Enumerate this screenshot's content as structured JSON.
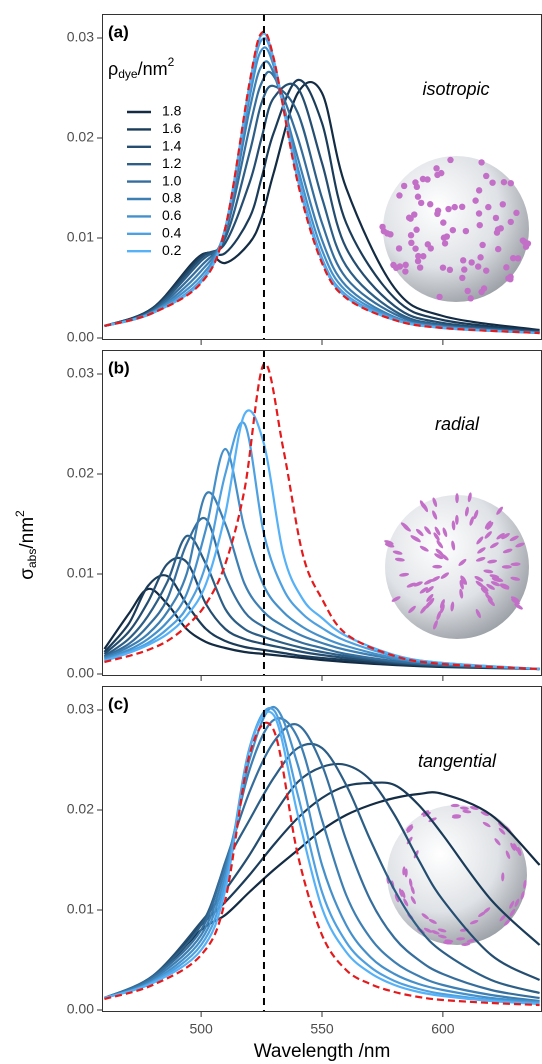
{
  "chart_data": [
    {
      "type": "line",
      "panel_label": "(a)",
      "annotation": "isotropic",
      "legend_title": [
        "ρ",
        "dye",
        "/nm",
        "2"
      ],
      "reference_line": 526,
      "xlim": [
        459,
        641
      ],
      "xticks": [
        500,
        550,
        600
      ],
      "ylim": [
        -0.0002,
        0.0324
      ],
      "yticks": [
        {
          "value": 0,
          "label": "0.00"
        },
        0.01,
        0.02,
        0.03
      ],
      "x": [
        460,
        480,
        500,
        510,
        520,
        525,
        530,
        540,
        550,
        560,
        580,
        600,
        640
      ],
      "series": [
        {
          "name": "1.8",
          "color": "#132b43",
          "values": [
            0.0012,
            0.003,
            0.0083,
            0.0075,
            0.0095,
            0.012,
            0.0165,
            0.0245,
            0.0245,
            0.015,
            0.005,
            0.0022,
            0.0008
          ]
        },
        {
          "name": "1.6",
          "color": "#1b3c59",
          "values": [
            0.0012,
            0.003,
            0.0082,
            0.0085,
            0.012,
            0.016,
            0.0205,
            0.0258,
            0.0215,
            0.0115,
            0.004,
            0.0018,
            0.0007
          ]
        },
        {
          "name": "1.4",
          "color": "#244d70",
          "values": [
            0.0012,
            0.0029,
            0.008,
            0.0095,
            0.0155,
            0.02,
            0.024,
            0.025,
            0.0175,
            0.009,
            0.0032,
            0.0015,
            0.0006
          ]
        },
        {
          "name": "1.2",
          "color": "#2c5e86",
          "values": [
            0.0012,
            0.0028,
            0.0077,
            0.01,
            0.0185,
            0.0235,
            0.0252,
            0.0225,
            0.014,
            0.0072,
            0.0027,
            0.0013,
            0.0006
          ]
        },
        {
          "name": "1.0",
          "color": "#356e9d",
          "values": [
            0.0012,
            0.0027,
            0.0072,
            0.0105,
            0.021,
            0.0255,
            0.0262,
            0.02,
            0.0115,
            0.006,
            0.0024,
            0.0012,
            0.0005
          ]
        },
        {
          "name": "0.8",
          "color": "#3d7fb3",
          "values": [
            0.0012,
            0.0026,
            0.0067,
            0.0108,
            0.0228,
            0.0272,
            0.0265,
            0.018,
            0.0098,
            0.0052,
            0.0021,
            0.0011,
            0.0005
          ]
        },
        {
          "name": "0.6",
          "color": "#4590ca",
          "values": [
            0.0012,
            0.0026,
            0.0062,
            0.011,
            0.024,
            0.0288,
            0.0272,
            0.017,
            0.0088,
            0.0047,
            0.002,
            0.0011,
            0.0005
          ]
        },
        {
          "name": "0.4",
          "color": "#4ea0e0",
          "values": [
            0.0012,
            0.0025,
            0.0058,
            0.011,
            0.0248,
            0.0298,
            0.0277,
            0.0162,
            0.008,
            0.0043,
            0.0019,
            0.001,
            0.0005
          ]
        },
        {
          "name": "0.2",
          "color": "#56b1f7",
          "values": [
            0.0012,
            0.0025,
            0.0056,
            0.011,
            0.0253,
            0.0303,
            0.0279,
            0.0158,
            0.0077,
            0.0041,
            0.0018,
            0.001,
            0.0005
          ]
        }
      ],
      "reference": {
        "color": "#e41a1c",
        "values": [
          0.0012,
          0.0025,
          0.0055,
          0.011,
          0.0255,
          0.0305,
          0.028,
          0.0155,
          0.0075,
          0.004,
          0.0018,
          0.001,
          0.0005
        ]
      }
    },
    {
      "type": "line",
      "panel_label": "(b)",
      "annotation": "radial",
      "y_label": [
        "σ",
        "abs",
        "/nm",
        "2"
      ],
      "reference_line": 526,
      "xlim": [
        459,
        641
      ],
      "xticks": [
        500,
        550,
        600
      ],
      "ylim": [
        -0.0002,
        0.0324
      ],
      "yticks": [
        {
          "value": 0,
          "label": "0.00"
        },
        0.01,
        0.02,
        0.03
      ],
      "x": [
        460,
        470,
        478,
        486,
        494,
        502,
        510,
        518,
        526,
        534,
        542,
        550,
        560,
        580,
        600,
        640
      ],
      "series": [
        {
          "color": "#132b43",
          "values": [
            0.0025,
            0.006,
            0.0085,
            0.007,
            0.0045,
            0.0032,
            0.0026,
            0.0022,
            0.002,
            0.0018,
            0.0016,
            0.0014,
            0.0012,
            0.0009,
            0.0007,
            0.0005
          ]
        },
        {
          "color": "#1b3c59",
          "values": [
            0.0022,
            0.005,
            0.0088,
            0.0098,
            0.007,
            0.0045,
            0.0033,
            0.0027,
            0.0024,
            0.0021,
            0.0018,
            0.0016,
            0.0014,
            0.001,
            0.0008,
            0.0005
          ]
        },
        {
          "color": "#244d70",
          "values": [
            0.002,
            0.0042,
            0.0072,
            0.011,
            0.0112,
            0.007,
            0.0045,
            0.0035,
            0.003,
            0.0026,
            0.0022,
            0.0019,
            0.0016,
            0.0011,
            0.0008,
            0.0005
          ]
        },
        {
          "color": "#2c5e86",
          "values": [
            0.0018,
            0.0035,
            0.0058,
            0.0092,
            0.0138,
            0.011,
            0.0065,
            0.0045,
            0.0037,
            0.0031,
            0.0026,
            0.0022,
            0.0018,
            0.0012,
            0.0009,
            0.0005
          ]
        },
        {
          "color": "#356e9d",
          "values": [
            0.0017,
            0.003,
            0.0048,
            0.0075,
            0.013,
            0.0155,
            0.0098,
            0.0062,
            0.0047,
            0.0038,
            0.0031,
            0.0026,
            0.002,
            0.0013,
            0.0009,
            0.0005
          ]
        },
        {
          "color": "#3d7fb3",
          "values": [
            0.0016,
            0.0027,
            0.004,
            0.0062,
            0.01,
            0.018,
            0.015,
            0.009,
            0.0062,
            0.0048,
            0.0038,
            0.0031,
            0.0024,
            0.0015,
            0.001,
            0.0005
          ]
        },
        {
          "color": "#4590ca",
          "values": [
            0.0015,
            0.0024,
            0.0035,
            0.0052,
            0.008,
            0.0145,
            0.0225,
            0.0145,
            0.0088,
            0.0062,
            0.0047,
            0.0037,
            0.0028,
            0.0016,
            0.001,
            0.0005
          ]
        },
        {
          "color": "#4ea0e0",
          "values": [
            0.0014,
            0.0022,
            0.0031,
            0.0045,
            0.0066,
            0.011,
            0.02,
            0.025,
            0.014,
            0.0085,
            0.006,
            0.0046,
            0.0033,
            0.0018,
            0.0011,
            0.0005
          ]
        },
        {
          "color": "#56b1f7",
          "values": [
            0.0013,
            0.0021,
            0.0029,
            0.004,
            0.0058,
            0.009,
            0.016,
            0.026,
            0.023,
            0.012,
            0.0075,
            0.0056,
            0.0038,
            0.0019,
            0.0011,
            0.0005
          ]
        }
      ],
      "reference": {
        "color": "#e41a1c",
        "values": [
          0.0012,
          0.0018,
          0.0024,
          0.0033,
          0.0048,
          0.007,
          0.011,
          0.0185,
          0.031,
          0.0225,
          0.012,
          0.0075,
          0.004,
          0.0018,
          0.001,
          0.0005
        ]
      }
    },
    {
      "type": "line",
      "panel_label": "(c)",
      "annotation": "tangential",
      "x_label": "Wavelength /nm",
      "reference_line": 526,
      "xlim": [
        459,
        641
      ],
      "xticks": [
        500,
        550,
        600
      ],
      "ylim": [
        -0.0002,
        0.0324
      ],
      "yticks": [
        {
          "value": 0,
          "label": "0.00"
        },
        0.01,
        0.02,
        0.03
      ],
      "x": [
        460,
        480,
        500,
        510,
        520,
        530,
        540,
        550,
        560,
        570,
        580,
        590,
        600,
        620,
        640
      ],
      "series": [
        {
          "color": "#132b43",
          "values": [
            0.0012,
            0.0032,
            0.008,
            0.0095,
            0.0118,
            0.014,
            0.016,
            0.018,
            0.0195,
            0.0205,
            0.0212,
            0.0216,
            0.0216,
            0.0195,
            0.0145
          ]
        },
        {
          "color": "#1b3c59",
          "values": [
            0.0012,
            0.0033,
            0.0085,
            0.0108,
            0.0135,
            0.0165,
            0.0192,
            0.0212,
            0.0224,
            0.0227,
            0.0225,
            0.0205,
            0.0175,
            0.011,
            0.0065
          ]
        },
        {
          "color": "#244d70",
          "values": [
            0.0012,
            0.0034,
            0.0088,
            0.012,
            0.0155,
            0.0195,
            0.0228,
            0.0243,
            0.0245,
            0.023,
            0.0195,
            0.015,
            0.011,
            0.0055,
            0.003
          ]
        },
        {
          "color": "#2c5e86",
          "values": [
            0.0012,
            0.0034,
            0.0085,
            0.0145,
            0.019,
            0.0232,
            0.0262,
            0.0262,
            0.0225,
            0.017,
            0.012,
            0.0082,
            0.0058,
            0.003,
            0.0017
          ]
        },
        {
          "color": "#356e9d",
          "values": [
            0.0012,
            0.0033,
            0.008,
            0.0148,
            0.0218,
            0.0268,
            0.0285,
            0.0245,
            0.017,
            0.011,
            0.0072,
            0.005,
            0.0036,
            0.002,
            0.0012
          ]
        },
        {
          "color": "#3d7fb3",
          "values": [
            0.0012,
            0.0031,
            0.0075,
            0.0142,
            0.024,
            0.029,
            0.0272,
            0.019,
            0.0115,
            0.0072,
            0.0048,
            0.0034,
            0.0025,
            0.0015,
            0.0009
          ]
        },
        {
          "color": "#4590ca",
          "values": [
            0.0012,
            0.0029,
            0.007,
            0.0135,
            0.025,
            0.0303,
            0.0245,
            0.0145,
            0.0085,
            0.0053,
            0.0036,
            0.0026,
            0.002,
            0.0012,
            0.0008
          ]
        },
        {
          "color": "#4ea0e0",
          "values": [
            0.0012,
            0.0028,
            0.0065,
            0.0128,
            0.0262,
            0.03,
            0.0215,
            0.0118,
            0.0068,
            0.0043,
            0.0029,
            0.0021,
            0.0016,
            0.001,
            0.0007
          ]
        },
        {
          "color": "#56b1f7",
          "values": [
            0.0012,
            0.0027,
            0.006,
            0.012,
            0.026,
            0.0295,
            0.0195,
            0.0102,
            0.0058,
            0.0037,
            0.0025,
            0.0018,
            0.0014,
            0.0009,
            0.0006
          ]
        }
      ],
      "reference": {
        "color": "#e41a1c",
        "values": [
          0.0011,
          0.0025,
          0.0055,
          0.011,
          0.0255,
          0.028,
          0.0155,
          0.0075,
          0.004,
          0.0026,
          0.0018,
          0.0013,
          0.001,
          0.0007,
          0.0005
        ]
      }
    }
  ]
}
